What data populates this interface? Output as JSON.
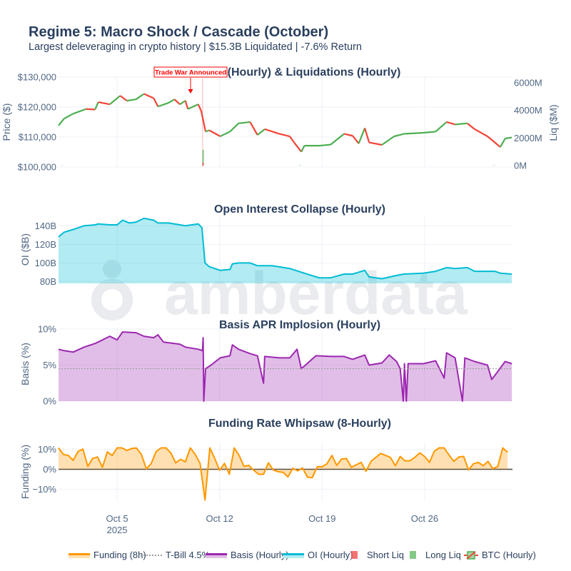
{
  "header": {
    "title": "Regime 5: Macro Shock / Cascade (October)",
    "subtitle": "Largest deleveraging in crypto history | $15.3B Liquidated | -7.6% Return"
  },
  "watermark": "amberdata",
  "colors": {
    "funding": "#ff9800",
    "tbill": "#9e9e9e",
    "basis": "#9c27b0",
    "oi": "#00bcd4",
    "short_liq": "#ef5350",
    "long_liq": "#66bb6a",
    "candle_up": "#4caf50",
    "candle_down": "#f44336",
    "annotation": "#ff0000"
  },
  "x_axis": {
    "range": [
      "2025-10-01",
      "2025-10-31"
    ],
    "ticks": [
      {
        "date": "2025-10-05T00",
        "label": "Oct 5",
        "sublabel": "2025"
      },
      {
        "date": "2025-10-12T00",
        "label": "Oct 12",
        "sublabel": ""
      },
      {
        "date": "2025-10-19T00",
        "label": "Oct 19",
        "sublabel": ""
      },
      {
        "date": "2025-10-26T00",
        "label": "Oct 26",
        "sublabel": ""
      }
    ]
  },
  "chart_data": [
    {
      "type": "candlestick",
      "title": "(Hourly) & Liquidations (Hourly)",
      "ylabel": "Price ($)",
      "y2label": "Liq ($M)",
      "ylim": [
        100000,
        130000
      ],
      "y2lim": [
        0,
        6000
      ],
      "yticks": [
        {
          "v": 100000,
          "label": "$100,000"
        },
        {
          "v": 110000,
          "label": "$110,000"
        },
        {
          "v": 120000,
          "label": "$120,000"
        },
        {
          "v": 130000,
          "label": "$130,000"
        }
      ],
      "y2ticks": [
        {
          "v": 0,
          "label": "0M"
        },
        {
          "v": 2000,
          "label": "2000M"
        },
        {
          "v": 4000,
          "label": "4000M"
        },
        {
          "v": 6000,
          "label": "6000M"
        }
      ],
      "annotation": {
        "text": "Trade War Announced",
        "date": "2025-10-10T20"
      },
      "price": [
        [
          "2025-10-01T00",
          114500
        ],
        [
          "2025-10-01T09",
          117000
        ],
        [
          "2025-10-02T00",
          118800
        ],
        [
          "2025-10-02T21",
          120500
        ],
        [
          "2025-10-03T12",
          120300
        ],
        [
          "2025-10-03T17",
          123000
        ],
        [
          "2025-10-04T12",
          122200
        ],
        [
          "2025-10-05T05",
          125300
        ],
        [
          "2025-10-05T16",
          123500
        ],
        [
          "2025-10-06T07",
          124000
        ],
        [
          "2025-10-06T20",
          126000
        ],
        [
          "2025-10-07T12",
          124400
        ],
        [
          "2025-10-07T19",
          121400
        ],
        [
          "2025-10-08T12",
          122700
        ],
        [
          "2025-10-08T22",
          124000
        ],
        [
          "2025-10-09T07",
          122200
        ],
        [
          "2025-10-09T16",
          123500
        ],
        [
          "2025-10-09T20",
          120500
        ],
        [
          "2025-10-10T13",
          122200
        ],
        [
          "2025-10-10T18",
          119700
        ],
        [
          "2025-10-11T01",
          112300
        ],
        [
          "2025-10-11T07",
          112800
        ],
        [
          "2025-10-12T01",
          110600
        ],
        [
          "2025-10-12T17",
          112300
        ],
        [
          "2025-10-13T07",
          115300
        ],
        [
          "2025-10-14T02",
          115800
        ],
        [
          "2025-10-14T14",
          111100
        ],
        [
          "2025-10-15T02",
          113200
        ],
        [
          "2025-10-16T02",
          111500
        ],
        [
          "2025-10-16T19",
          110600
        ],
        [
          "2025-10-17T02",
          108400
        ],
        [
          "2025-10-17T14",
          105000
        ],
        [
          "2025-10-17T19",
          107200
        ],
        [
          "2025-10-18T19",
          107200
        ],
        [
          "2025-10-19T14",
          107600
        ],
        [
          "2025-10-20T12",
          111500
        ],
        [
          "2025-10-21T02",
          110800
        ],
        [
          "2025-10-21T12",
          108000
        ],
        [
          "2025-10-21T22",
          113600
        ],
        [
          "2025-10-22T05",
          108400
        ],
        [
          "2025-10-23T02",
          107500
        ],
        [
          "2025-10-23T22",
          110600
        ],
        [
          "2025-10-24T14",
          111500
        ],
        [
          "2025-10-25T22",
          111900
        ],
        [
          "2025-10-26T18",
          112300
        ],
        [
          "2025-10-27T12",
          115800
        ],
        [
          "2025-10-28T02",
          114900
        ],
        [
          "2025-10-28T22",
          115300
        ],
        [
          "2025-10-29T10",
          113200
        ],
        [
          "2025-10-30T07",
          110600
        ],
        [
          "2025-10-30T19",
          108400
        ],
        [
          "2025-10-31T04",
          106700
        ],
        [
          "2025-10-31T12",
          109800
        ],
        [
          "2025-10-31T23",
          110200
        ]
      ],
      "long_liq": [
        [
          "2025-10-10T21",
          1150
        ],
        [
          "2025-10-17T12",
          40
        ],
        [
          "2025-10-30T18",
          30
        ]
      ],
      "short_liq": [
        [
          "2025-10-10T21",
          200
        ],
        [
          "2025-10-01T06",
          20
        ]
      ]
    },
    {
      "type": "area",
      "title": "Open Interest Collapse (Hourly)",
      "ylabel": "OI ($B)",
      "ylim": [
        78,
        151
      ],
      "yticks": [
        {
          "v": 80,
          "label": "80B"
        },
        {
          "v": 100,
          "label": "100B"
        },
        {
          "v": 120,
          "label": "120B"
        },
        {
          "v": 140,
          "label": "140B"
        }
      ],
      "series": [
        [
          "2025-10-01T00",
          128
        ],
        [
          "2025-10-01T09",
          133
        ],
        [
          "2025-10-02T00",
          136
        ],
        [
          "2025-10-02T18",
          140
        ],
        [
          "2025-10-03T12",
          141
        ],
        [
          "2025-10-03T17",
          142
        ],
        [
          "2025-10-04T12",
          141
        ],
        [
          "2025-10-05T00",
          141
        ],
        [
          "2025-10-05T09",
          146
        ],
        [
          "2025-10-05T20",
          143
        ],
        [
          "2025-10-06T07",
          144
        ],
        [
          "2025-10-06T20",
          148
        ],
        [
          "2025-10-07T12",
          146
        ],
        [
          "2025-10-07T19",
          143
        ],
        [
          "2025-10-08T12",
          143
        ],
        [
          "2025-10-09T07",
          141
        ],
        [
          "2025-10-09T16",
          140
        ],
        [
          "2025-10-10T13",
          142
        ],
        [
          "2025-10-10T19",
          138
        ],
        [
          "2025-10-11T00",
          100
        ],
        [
          "2025-10-11T07",
          96
        ],
        [
          "2025-10-12T01",
          92
        ],
        [
          "2025-10-12T17",
          93
        ],
        [
          "2025-10-12T21",
          99
        ],
        [
          "2025-10-13T07",
          100
        ],
        [
          "2025-10-14T02",
          100
        ],
        [
          "2025-10-14T14",
          97
        ],
        [
          "2025-10-15T14",
          97
        ],
        [
          "2025-10-16T19",
          94
        ],
        [
          "2025-10-17T14",
          90
        ],
        [
          "2025-10-18T19",
          84
        ],
        [
          "2025-10-19T14",
          84
        ],
        [
          "2025-10-20T12",
          88
        ],
        [
          "2025-10-21T02",
          88
        ],
        [
          "2025-10-21T22",
          92
        ],
        [
          "2025-10-22T05",
          85
        ],
        [
          "2025-10-23T02",
          83
        ],
        [
          "2025-10-23T22",
          86
        ],
        [
          "2025-10-24T14",
          88
        ],
        [
          "2025-10-25T22",
          89
        ],
        [
          "2025-10-26T18",
          91
        ],
        [
          "2025-10-27T12",
          95
        ],
        [
          "2025-10-28T02",
          94
        ],
        [
          "2025-10-28T22",
          95
        ],
        [
          "2025-10-29T10",
          91
        ],
        [
          "2025-10-30T07",
          91
        ],
        [
          "2025-10-30T19",
          91
        ],
        [
          "2025-10-31T04",
          89
        ],
        [
          "2025-10-31T23",
          88
        ]
      ]
    },
    {
      "type": "area",
      "title": "Basis APR Implosion (Hourly)",
      "ylabel": "Basis (%)",
      "ylim": [
        0,
        10.3
      ],
      "yticks": [
        {
          "v": 0,
          "label": "0%"
        },
        {
          "v": 5,
          "label": "5%"
        },
        {
          "v": 10,
          "label": "10%"
        }
      ],
      "reference_line": {
        "name": "T-Bill 4.5%",
        "value": 4.5
      },
      "series": [
        [
          "2025-10-01T00",
          7.2
        ],
        [
          "2025-10-01T09",
          7.0
        ],
        [
          "2025-10-02T00",
          6.8
        ],
        [
          "2025-10-02T18",
          7.5
        ],
        [
          "2025-10-03T12",
          8.0
        ],
        [
          "2025-10-03T17",
          8.2
        ],
        [
          "2025-10-04T12",
          9.0
        ],
        [
          "2025-10-05T00",
          8.5
        ],
        [
          "2025-10-05T09",
          9.6
        ],
        [
          "2025-10-06T07",
          9.5
        ],
        [
          "2025-10-06T20",
          9.0
        ],
        [
          "2025-10-07T12",
          8.8
        ],
        [
          "2025-10-07T19",
          9.2
        ],
        [
          "2025-10-08T04",
          8.2
        ],
        [
          "2025-10-09T07",
          7.9
        ],
        [
          "2025-10-09T16",
          7.5
        ],
        [
          "2025-10-10T13",
          7.2
        ],
        [
          "2025-10-10T20",
          7.0
        ],
        [
          "2025-10-10T21",
          8.8
        ],
        [
          "2025-10-10T22",
          0.0
        ],
        [
          "2025-10-11T01",
          4.5
        ],
        [
          "2025-10-11T10",
          5.0
        ],
        [
          "2025-10-12T01",
          6.0
        ],
        [
          "2025-10-12T17",
          6.3
        ],
        [
          "2025-10-12T21",
          7.8
        ],
        [
          "2025-10-13T07",
          7.2
        ],
        [
          "2025-10-14T02",
          6.6
        ],
        [
          "2025-10-14T14",
          6.3
        ],
        [
          "2025-10-15T00",
          2.5
        ],
        [
          "2025-10-15T02",
          6.2
        ],
        [
          "2025-10-16T02",
          6.0
        ],
        [
          "2025-10-16T19",
          6.0
        ],
        [
          "2025-10-17T07",
          7.2
        ],
        [
          "2025-10-17T14",
          4.5
        ],
        [
          "2025-10-18T14",
          6.3
        ],
        [
          "2025-10-19T14",
          6.2
        ],
        [
          "2025-10-20T12",
          6.2
        ],
        [
          "2025-10-21T02",
          5.8
        ],
        [
          "2025-10-21T22",
          6.4
        ],
        [
          "2025-10-22T05",
          5.0
        ],
        [
          "2025-10-23T02",
          5.3
        ],
        [
          "2025-10-23T14",
          6.4
        ],
        [
          "2025-10-24T02",
          5.5
        ],
        [
          "2025-10-24T08",
          4.5
        ],
        [
          "2025-10-24T13",
          0.0
        ],
        [
          "2025-10-24T15",
          5.2
        ],
        [
          "2025-10-24T18",
          0.0
        ],
        [
          "2025-10-24T21",
          5.2
        ],
        [
          "2025-10-25T22",
          5.2
        ],
        [
          "2025-10-26T18",
          5.6
        ],
        [
          "2025-10-27T08",
          3.2
        ],
        [
          "2025-10-27T12",
          6.7
        ],
        [
          "2025-10-28T02",
          6.0
        ],
        [
          "2025-10-28T14",
          0.0
        ],
        [
          "2025-10-28T18",
          6.0
        ],
        [
          "2025-10-29T10",
          5.5
        ],
        [
          "2025-10-30T07",
          5.0
        ],
        [
          "2025-10-30T14",
          3.0
        ],
        [
          "2025-10-30T22",
          3.9
        ],
        [
          "2025-10-31T12",
          5.5
        ],
        [
          "2025-10-31T23",
          5.2
        ]
      ]
    },
    {
      "type": "area",
      "title": "Funding Rate Whipsaw (8-Hourly)",
      "ylabel": "Funding (%)",
      "ylim": [
        -16,
        13.5
      ],
      "yticks": [
        {
          "v": -10,
          "label": "−10%"
        },
        {
          "v": 0,
          "label": "0%"
        },
        {
          "v": 10,
          "label": "10%"
        }
      ],
      "values": [
        10.8,
        7.5,
        7,
        4.5,
        9,
        10.2,
        1.5,
        5.5,
        6.2,
        1,
        8.8,
        7,
        10.8,
        10.8,
        9.5,
        10.5,
        10.7,
        7.3,
        0.2,
        3,
        9,
        10.8,
        10.8,
        8.3,
        3.3,
        5,
        3.8,
        10.8,
        7.5,
        3,
        -15.5,
        10.8,
        5.5,
        -0.5,
        3,
        -2.5,
        10.8,
        7,
        1.5,
        2,
        -0.5,
        -2.5,
        -2.5,
        3.3,
        -0.3,
        -1.2,
        -1.5,
        -3.8,
        0.5,
        -0.8,
        0.7,
        -4,
        -4.2,
        1.3,
        1.3,
        2.8,
        7,
        2,
        5.2,
        5.4,
        1,
        2.3,
        3.5,
        -1,
        4,
        6,
        8,
        7,
        6,
        1.8,
        6.5,
        4.3,
        4.3,
        6,
        8.3,
        6.5,
        3.5,
        9.2,
        10.8,
        10.8,
        7.2,
        4,
        6.2,
        6.5,
        -0.3,
        2.8,
        3.5,
        1.8,
        4,
        0.3,
        1.5,
        10.8,
        8.6
      ]
    }
  ],
  "legend": [
    {
      "label": "Funding (8h)",
      "icon": "line"
    },
    {
      "label": "T-Bill 4.5%",
      "icon": "dotted-line"
    },
    {
      "label": "Basis (Hourly)",
      "icon": "line"
    },
    {
      "label": "OI (Hourly)",
      "icon": "line"
    },
    {
      "label": "Short Liq",
      "icon": "square"
    },
    {
      "label": "Long Liq",
      "icon": "square"
    },
    {
      "label": "BTC (Hourly)",
      "icon": "candlestick"
    }
  ]
}
